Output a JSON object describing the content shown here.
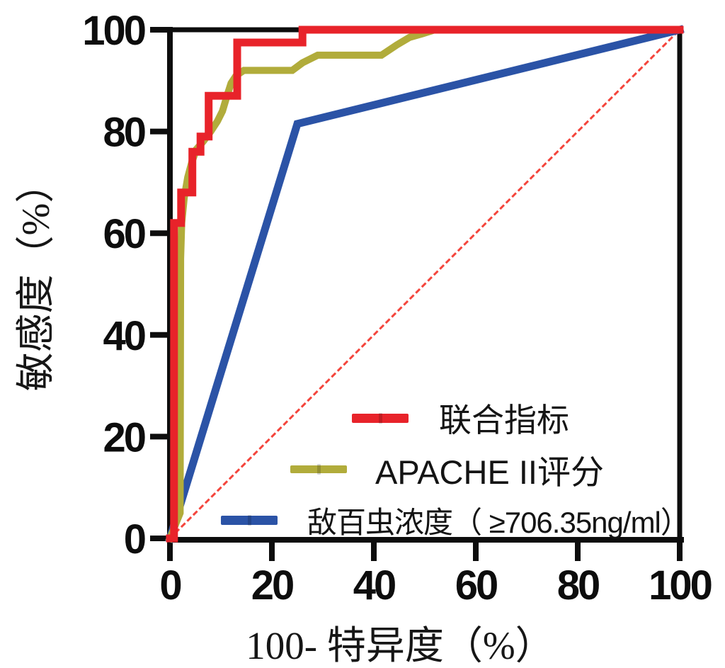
{
  "figure": {
    "kind": "ROC curve figure",
    "background": "#ffffff",
    "axis_color": "#0d0d0d"
  },
  "chart_data": {
    "type": "line",
    "title": "",
    "xlabel": "100- 特异度（%）",
    "ylabel": "敏感度（%）",
    "xlim": [
      0,
      100
    ],
    "ylim": [
      0,
      100
    ],
    "x_ticks": [
      0,
      20,
      40,
      60,
      80,
      100
    ],
    "y_ticks": [
      0,
      20,
      40,
      60,
      80,
      100
    ],
    "grid": false,
    "legend_position": "inside-lower-right",
    "series": [
      {
        "key": "combined-index",
        "name": "联合指标",
        "color": "#e8232a",
        "style": "solid",
        "line_width": 11,
        "curve": "step",
        "points": [
          [
            0,
            0
          ],
          [
            0.8,
            0
          ],
          [
            0.8,
            62
          ],
          [
            2.2,
            62
          ],
          [
            2.2,
            68
          ],
          [
            4.4,
            68
          ],
          [
            4.4,
            76
          ],
          [
            6,
            76
          ],
          [
            6,
            79
          ],
          [
            7.6,
            79
          ],
          [
            7.6,
            87
          ],
          [
            13.2,
            87
          ],
          [
            13.2,
            97.5
          ],
          [
            26,
            97.5
          ],
          [
            26,
            100
          ],
          [
            100,
            100
          ]
        ]
      },
      {
        "key": "apache-ii-score",
        "name": "APACHE II评分",
        "color": "#b1ac3b",
        "style": "solid",
        "line_width": 10,
        "curve": "linear",
        "points": [
          [
            0,
            0
          ],
          [
            2,
            5
          ],
          [
            2.1,
            55
          ],
          [
            2.3,
            62
          ],
          [
            2.8,
            67
          ],
          [
            3.5,
            71
          ],
          [
            4.3,
            74
          ],
          [
            5.2,
            76.5
          ],
          [
            6.5,
            78
          ],
          [
            8,
            80
          ],
          [
            9.3,
            82
          ],
          [
            10.3,
            84
          ],
          [
            11.2,
            87
          ],
          [
            12,
            89.5
          ],
          [
            13,
            91
          ],
          [
            14.5,
            92
          ],
          [
            24,
            92
          ],
          [
            26,
            93.5
          ],
          [
            29,
            95
          ],
          [
            41.5,
            95
          ],
          [
            44.5,
            97
          ],
          [
            47,
            98.5
          ],
          [
            49.5,
            99.2
          ],
          [
            52,
            100
          ],
          [
            100,
            100
          ]
        ]
      },
      {
        "key": "trichlorfon-concentration",
        "name": "敌百虫浓度（ ≥706.35ng/ml）",
        "color": "#2b53a6",
        "style": "solid",
        "line_width": 11,
        "curve": "linear",
        "points": [
          [
            0,
            0
          ],
          [
            25,
            81.5
          ],
          [
            100,
            100
          ]
        ]
      },
      {
        "key": "reference-diagonal",
        "name": "参考线",
        "color": "#f4453c",
        "style": "dashed",
        "line_width": 3,
        "curve": "linear",
        "points": [
          [
            0,
            0
          ],
          [
            100,
            100
          ]
        ]
      }
    ]
  },
  "legend": {
    "items": [
      {
        "label": "联合指标",
        "color": "#e8232a"
      },
      {
        "label": "APACHE II评分",
        "color": "#b1ac3b"
      },
      {
        "label": "敌百虫浓度（ ≥706.35ng/ml）",
        "color": "#2b53a6"
      }
    ]
  }
}
